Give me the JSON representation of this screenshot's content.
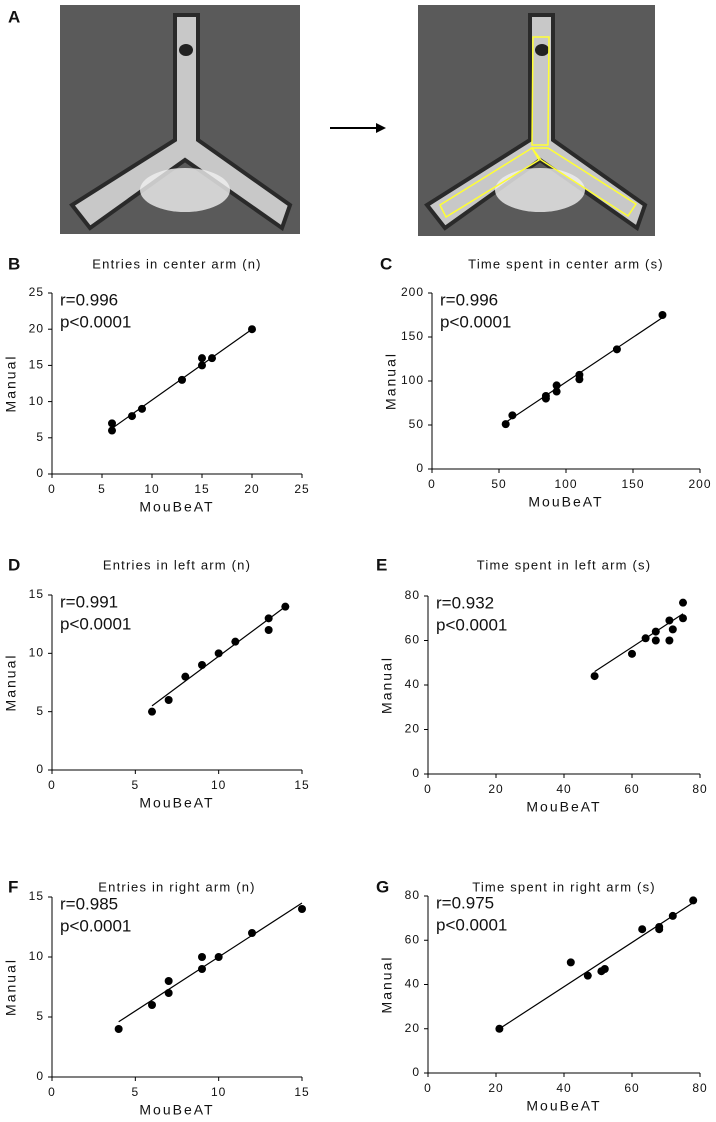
{
  "photo_panel": {
    "label": "A"
  },
  "chart_data": [
    {
      "type": "scatter",
      "label": "B",
      "title": "Entries in center arm (n)",
      "xlabel": "MouBeAT",
      "ylabel": "Manual",
      "annotations": [
        "r=0.996",
        "p<0.0001"
      ],
      "x": [
        6,
        6,
        8,
        9,
        13,
        15,
        15,
        16,
        20
      ],
      "values": [
        7,
        6,
        8,
        9,
        13,
        16,
        15,
        16,
        20
      ],
      "fit": {
        "x": [
          6,
          20
        ],
        "y": [
          6.3,
          20
        ]
      },
      "xlim": [
        0,
        25
      ],
      "xticks": [
        0,
        5,
        10,
        15,
        20,
        25
      ],
      "ylim": [
        0,
        25
      ],
      "yticks": [
        0,
        5,
        10,
        15,
        20,
        25
      ],
      "color": "#000000"
    },
    {
      "type": "scatter",
      "label": "C",
      "title": "Time spent in center arm (s)",
      "xlabel": "MouBeAT",
      "ylabel": "Manual",
      "annotations": [
        "r=0.996",
        "p<0.0001"
      ],
      "x": [
        55,
        60,
        85,
        85,
        93,
        93,
        110,
        110,
        138,
        172
      ],
      "values": [
        51,
        61,
        80,
        83,
        88,
        95,
        102,
        107,
        136,
        175
      ],
      "fit": {
        "x": [
          55,
          172
        ],
        "y": [
          53,
          172
        ]
      },
      "xlim": [
        0,
        200
      ],
      "xticks": [
        0,
        50,
        100,
        150,
        200
      ],
      "ylim": [
        0,
        200
      ],
      "yticks": [
        0,
        50,
        100,
        150,
        200
      ],
      "color": "#000000"
    },
    {
      "type": "scatter",
      "label": "D",
      "title": "Entries in left arm (n)",
      "xlabel": "MouBeAT",
      "ylabel": "Manual",
      "annotations": [
        "r=0.991",
        "p<0.0001"
      ],
      "x": [
        6,
        7,
        8,
        9,
        10,
        11,
        13,
        13,
        14
      ],
      "values": [
        5,
        6,
        8,
        9,
        10,
        11,
        13,
        12,
        14
      ],
      "fit": {
        "x": [
          6,
          14
        ],
        "y": [
          5.5,
          14
        ]
      },
      "xlim": [
        0,
        15
      ],
      "xticks": [
        0,
        5,
        10,
        15
      ],
      "ylim": [
        0,
        15
      ],
      "yticks": [
        0,
        5,
        10,
        15
      ],
      "color": "#000000"
    },
    {
      "type": "scatter",
      "label": "E",
      "title": "Time spent in left arm (s)",
      "xlabel": "MouBeAT",
      "ylabel": "Manual",
      "annotations": [
        "r=0.932",
        "p<0.0001"
      ],
      "x": [
        49,
        60,
        64,
        67,
        67,
        71,
        71,
        72,
        75,
        75
      ],
      "values": [
        44,
        54,
        61,
        64,
        60,
        69,
        60,
        65,
        77,
        70
      ],
      "fit": {
        "x": [
          49,
          75
        ],
        "y": [
          46,
          72
        ]
      },
      "xlim": [
        0,
        80
      ],
      "xticks": [
        0,
        20,
        40,
        60,
        80
      ],
      "ylim": [
        0,
        80
      ],
      "yticks": [
        0,
        20,
        40,
        60,
        80
      ],
      "color": "#000000"
    },
    {
      "type": "scatter",
      "label": "F",
      "title": "Entries in right arm (n)",
      "xlabel": "MouBeAT",
      "ylabel": "Manual",
      "annotations": [
        "r=0.985",
        "p<0.0001"
      ],
      "x": [
        4,
        6,
        7,
        7,
        9,
        9,
        10,
        12,
        15
      ],
      "values": [
        4,
        6,
        8,
        7,
        10,
        9,
        10,
        12,
        14
      ],
      "fit": {
        "x": [
          4,
          15
        ],
        "y": [
          4.6,
          14.5
        ]
      },
      "xlim": [
        0,
        15
      ],
      "xticks": [
        0,
        5,
        10,
        15
      ],
      "ylim": [
        0,
        15
      ],
      "yticks": [
        0,
        5,
        10,
        15
      ],
      "color": "#000000"
    },
    {
      "type": "scatter",
      "label": "G",
      "title": "Time spent in right arm (s)",
      "xlabel": "MouBeAT",
      "ylabel": "Manual",
      "annotations": [
        "r=0.975",
        "p<0.0001"
      ],
      "x": [
        21,
        42,
        47,
        51,
        52,
        63,
        68,
        68,
        72,
        78
      ],
      "values": [
        20,
        50,
        44,
        46,
        47,
        65,
        65,
        66,
        71,
        78
      ],
      "fit": {
        "x": [
          21,
          78
        ],
        "y": [
          20,
          77
        ]
      },
      "xlim": [
        0,
        80
      ],
      "xticks": [
        0,
        20,
        40,
        60,
        80
      ],
      "ylim": [
        0,
        80
      ],
      "yticks": [
        0,
        20,
        40,
        60,
        80
      ],
      "color": "#000000"
    }
  ]
}
